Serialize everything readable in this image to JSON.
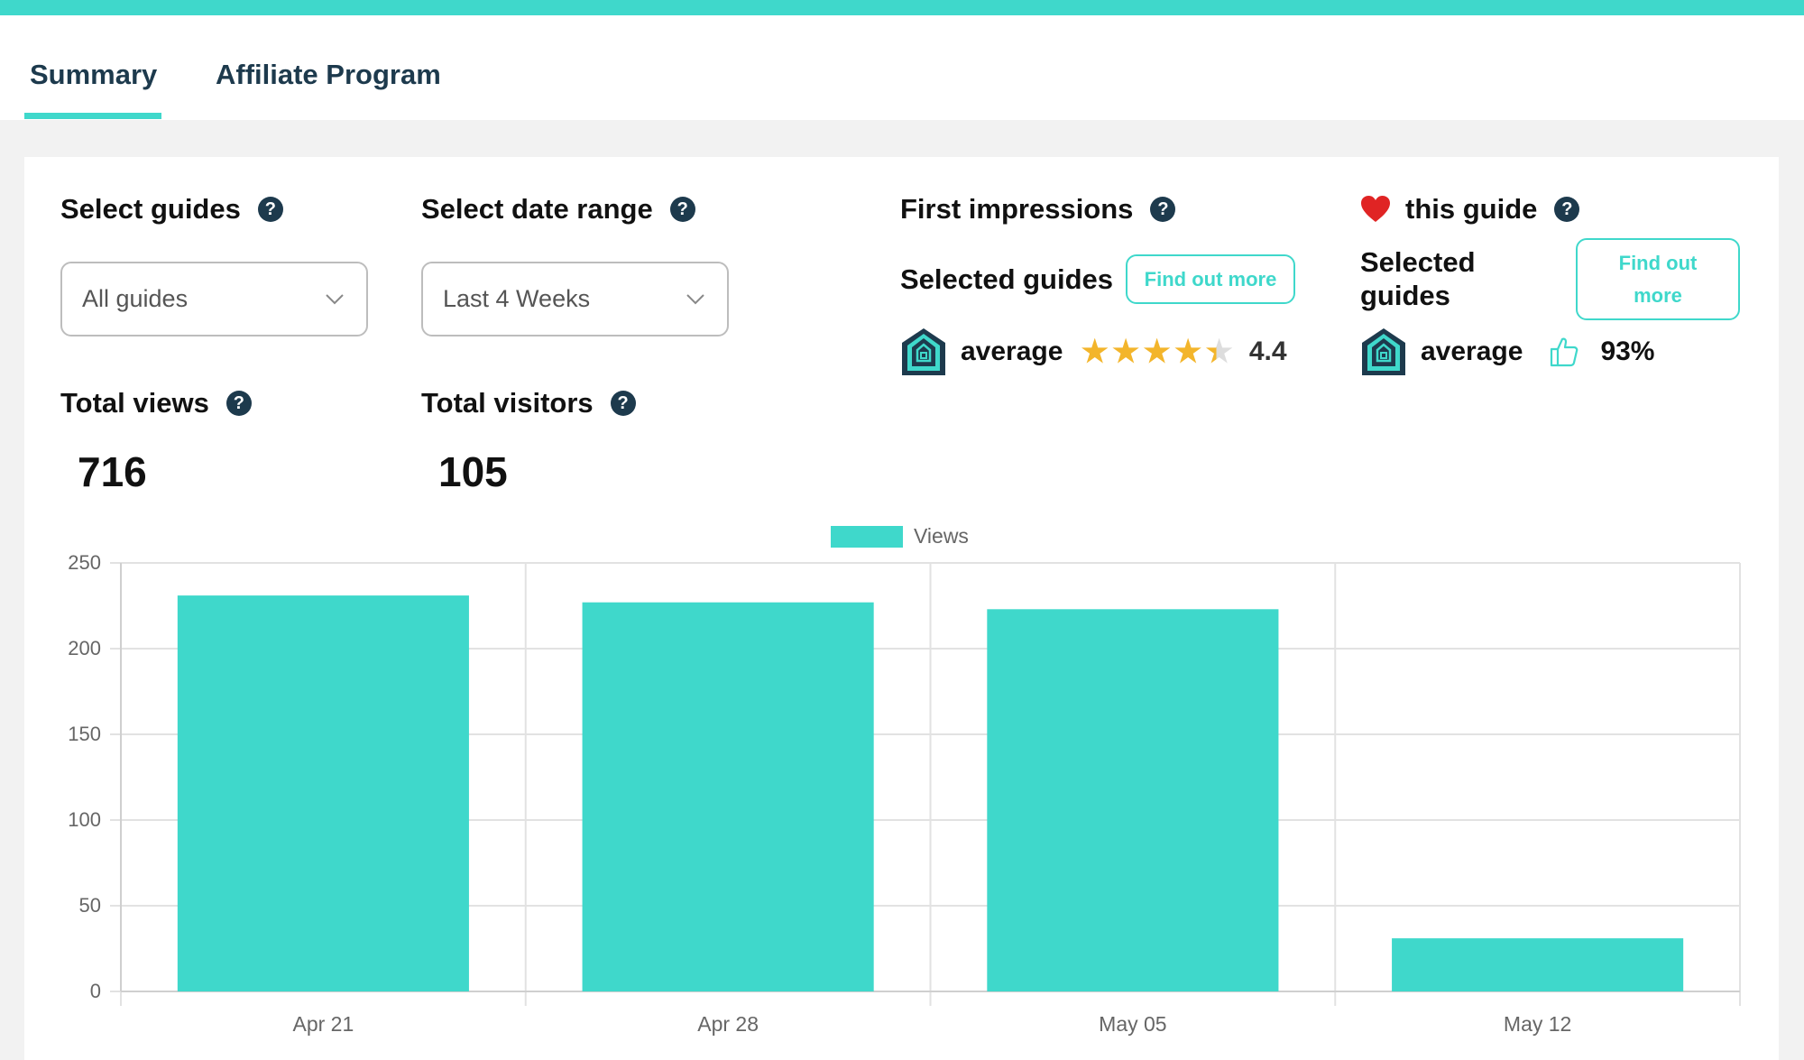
{
  "tabs": [
    {
      "label": "Summary",
      "active": true
    },
    {
      "label": "Affiliate Program",
      "active": false
    }
  ],
  "filters": {
    "guides": {
      "label": "Select guides",
      "value": "All guides"
    },
    "date_range": {
      "label": "Select date range",
      "value": "Last 4 Weeks"
    }
  },
  "stats": {
    "total_views": {
      "label": "Total views",
      "value": "716"
    },
    "total_visitors": {
      "label": "Total visitors",
      "value": "105"
    }
  },
  "first_impressions": {
    "title": "First impressions",
    "selected_label": "Selected guides",
    "button": "Find out more",
    "average_label": "average",
    "rating": 4.4,
    "rating_text": "4.4"
  },
  "love_guide": {
    "heart_icon": "heart-icon",
    "title": "this guide",
    "selected_label": "Selected guides",
    "button": "Find out more",
    "average_label": "average",
    "percent": "93%"
  },
  "help_glyph": "?",
  "colors": {
    "accent": "#3fd8cb",
    "dark": "#1d3a4d",
    "star": "#f3b52b"
  },
  "chart_data": {
    "type": "bar",
    "legend": [
      "Views"
    ],
    "categories": [
      "Apr 21",
      "Apr 28",
      "May 05",
      "May 12"
    ],
    "series": [
      {
        "name": "Views",
        "values": [
          231,
          227,
          223,
          31
        ]
      }
    ],
    "yticks": [
      "0",
      "50",
      "100",
      "150",
      "200",
      "250"
    ],
    "ylim": [
      0,
      250
    ],
    "grid": true
  }
}
